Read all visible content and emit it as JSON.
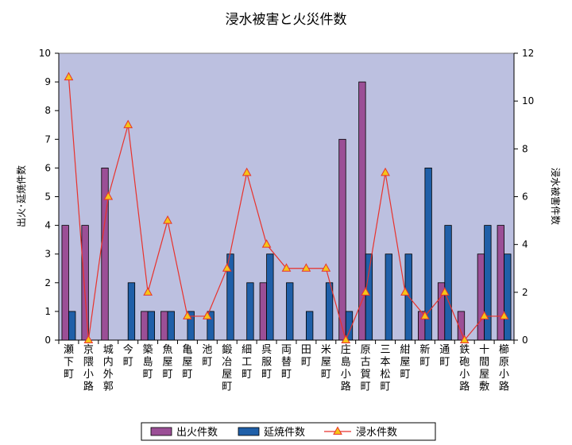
{
  "chart_data": {
    "type": "bar",
    "title": "浸水被害と火災件数",
    "ylabel_left": "出火･延焼件数",
    "ylabel_right": "浸水被害件数",
    "ylim_left": [
      0,
      10
    ],
    "yticks_left": [
      "0",
      "1",
      "2",
      "3",
      "4",
      "5",
      "6",
      "7",
      "8",
      "9",
      "10"
    ],
    "ylim_right": [
      0,
      12
    ],
    "yticks_right": [
      "0",
      "2",
      "4",
      "6",
      "8",
      "10",
      "12"
    ],
    "grid": false,
    "legend_position": "bottom",
    "categories": [
      "瀬下町",
      "京隈小路",
      "城内外郭",
      "今町",
      "築島町",
      "魚屋町",
      "亀屋町",
      "池町",
      "鍛冶屋町",
      "細工町",
      "呉服町",
      "両替町",
      "田町",
      "米屋町",
      "庄島小路",
      "原古賀町",
      "三本松町",
      "紺屋町",
      "新町",
      "通町",
      "鉄砲小路",
      "十間屋敷",
      "櫛原小路"
    ],
    "series": [
      {
        "name": "出火件数",
        "type": "bar",
        "axis": "left",
        "color": "#9b4f96",
        "values": [
          4,
          4,
          6,
          0,
          1,
          1,
          0,
          0,
          0,
          0,
          2,
          0,
          0,
          0,
          7,
          9,
          0,
          0,
          1,
          2,
          1,
          3,
          4
        ]
      },
      {
        "name": "延焼件数",
        "type": "bar",
        "axis": "left",
        "color": "#1f5fa8",
        "values": [
          1,
          0,
          0,
          2,
          1,
          1,
          1,
          1,
          3,
          2,
          3,
          2,
          1,
          2,
          1,
          3,
          3,
          3,
          6,
          4,
          0,
          4,
          3
        ]
      },
      {
        "name": "浸水件数",
        "type": "line",
        "axis": "right",
        "color": "#e8322c",
        "marker_color": "#f5c518",
        "values": [
          11,
          0,
          6,
          9,
          2,
          5,
          1,
          1,
          3,
          7,
          4,
          3,
          3,
          3,
          0,
          2,
          7,
          2,
          1,
          2,
          0,
          1,
          1
        ]
      }
    ],
    "plot_background": "#bcc0e0"
  }
}
